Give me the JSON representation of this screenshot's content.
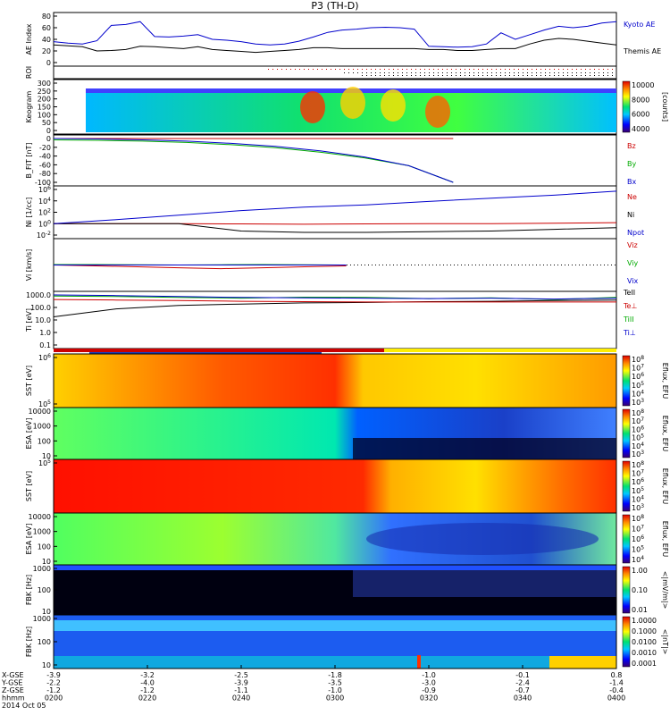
{
  "title": "P3 (TH-D)",
  "chart_data": [
    {
      "type": "line",
      "ylabel": "AE Index",
      "ylim": [
        -20,
        80
      ],
      "yticks": [
        "80",
        "60",
        "40",
        "20",
        "0"
      ],
      "series": [
        {
          "name": "Kyoto AE",
          "color": "#0000cc",
          "values": [
            25,
            22,
            20,
            27,
            60,
            62,
            68,
            36,
            35,
            37,
            40,
            30,
            28,
            25,
            20,
            18,
            20,
            26,
            35,
            45,
            50,
            52,
            55,
            56,
            55,
            52,
            15,
            14,
            13,
            14,
            20,
            44,
            30,
            40,
            50,
            58,
            55,
            58,
            65,
            68
          ]
        },
        {
          "name": "Themis AE",
          "color": "#000000",
          "values": [
            18,
            16,
            14,
            5,
            6,
            8,
            15,
            14,
            12,
            10,
            14,
            8,
            6,
            4,
            2,
            4,
            6,
            8,
            12,
            12,
            10,
            10,
            10,
            10,
            10,
            10,
            8,
            8,
            6,
            6,
            8,
            10,
            10,
            20,
            28,
            32,
            30,
            26,
            22,
            18
          ]
        }
      ]
    },
    {
      "type": "heatmap",
      "ylabel": "ROI"
    },
    {
      "type": "heatmap",
      "ylabel": "Keogram",
      "yticks": [
        "300",
        "250",
        "200",
        "150",
        "100",
        "50",
        "0"
      ],
      "colorbar": {
        "label": "[counts]",
        "ticks": [
          "10000",
          "8000",
          "6000",
          "4000"
        ]
      }
    },
    {
      "type": "line",
      "ylabel": "B_FIT [nT]",
      "ylim": [
        -100,
        0
      ],
      "yticks": [
        "0",
        "-20",
        "-40",
        "-60",
        "-80",
        "-100"
      ],
      "series": [
        {
          "name": "Bz",
          "color": "#cc0000",
          "values": [
            0,
            0,
            0,
            0,
            0,
            0,
            0,
            0,
            0,
            0
          ]
        },
        {
          "name": "By",
          "color": "#00aa00",
          "values": [
            -3,
            -4,
            -6,
            -9,
            -14,
            -21,
            -31,
            -44,
            -62,
            -100
          ]
        },
        {
          "name": "Bx",
          "color": "#0000cc",
          "values": [
            0,
            -1,
            -3,
            -6,
            -11,
            -18,
            -28,
            -42,
            -62,
            -100
          ]
        }
      ]
    },
    {
      "type": "line",
      "ylabel": "Ni [1/cc]",
      "yticks": [
        "10^6",
        "10^4",
        "10^2",
        "10^0",
        "10^-2"
      ],
      "series": [
        {
          "name": "Ne",
          "color": "#cc0000",
          "values": [
            1,
            1,
            1,
            0.9,
            0.8,
            0.9,
            1,
            1,
            1.2,
            1.5
          ]
        },
        {
          "name": "Ni",
          "color": "#000000",
          "values": [
            1,
            1,
            1,
            0.05,
            0.03,
            0.03,
            0.04,
            0.05,
            0.1,
            0.2
          ]
        },
        {
          "name": "Npot",
          "color": "#0000cc",
          "values": [
            1,
            5,
            30,
            200,
            800,
            2000,
            8000,
            30000,
            100000,
            500000
          ]
        }
      ]
    },
    {
      "type": "line",
      "ylabel": "Vi [km/s]",
      "ylim": [
        -500,
        500
      ],
      "series": [
        {
          "name": "Viz",
          "color": "#cc0000",
          "values": [
            0,
            -20,
            -40,
            -60,
            -80,
            -60,
            -40,
            -20
          ]
        },
        {
          "name": "Viy",
          "color": "#00aa00",
          "values": [
            10,
            10,
            5,
            0,
            5,
            10,
            5,
            0
          ]
        },
        {
          "name": "Vix",
          "color": "#0000cc",
          "values": [
            0,
            0,
            0,
            0,
            0,
            0,
            0,
            0
          ]
        }
      ]
    },
    {
      "type": "line",
      "ylabel": "Ti [eV]",
      "yticks": [
        "1000.0",
        "100.0",
        "10.0",
        "1.0",
        "0.1"
      ],
      "series": [
        {
          "name": "TeII",
          "color": "#000000",
          "values": [
            30,
            150,
            300,
            400,
            500,
            550,
            650,
            700,
            800,
            900
          ]
        },
        {
          "name": "Te⊥",
          "color": "#cc0000",
          "values": [
            1000,
            900,
            800,
            700,
            650,
            600,
            600,
            600,
            600,
            600
          ]
        },
        {
          "name": "TiII",
          "color": "#00aa00",
          "values": [
            2000,
            1800,
            1500,
            1300,
            1600,
            1500,
            1200,
            1400,
            1000,
            1500
          ]
        },
        {
          "name": "Ti⊥",
          "color": "#0000cc",
          "values": [
            2500,
            2200,
            1800,
            1500,
            1400,
            1300,
            1200,
            1300,
            1100,
            1300
          ]
        }
      ]
    },
    {
      "type": "heatmap",
      "ylabel": "SST [eV]",
      "yticks": [
        "10^6",
        "10^5"
      ],
      "colorbar": {
        "label": "Eflux, EFU",
        "ticks": [
          "10^8",
          "10^7",
          "10^6",
          "10^5",
          "10^4",
          "10^3"
        ]
      }
    },
    {
      "type": "heatmap",
      "ylabel": "ESA [eV]",
      "yticks": [
        "10000",
        "1000",
        "100",
        "10"
      ],
      "colorbar": {
        "label": "Eflux, EFU",
        "ticks": [
          "10^8",
          "10^7",
          "10^6",
          "10^5",
          "10^4",
          "10^3"
        ]
      }
    },
    {
      "type": "heatmap",
      "ylabel": "SST [eV]",
      "yticks": [
        "10^5"
      ],
      "colorbar": {
        "label": "Eflux, EFU",
        "ticks": [
          "10^8",
          "10^7",
          "10^6",
          "10^5",
          "10^4",
          "10^3"
        ]
      }
    },
    {
      "type": "heatmap",
      "ylabel": "ESA [eV]",
      "yticks": [
        "10000",
        "1000",
        "100",
        "10"
      ],
      "colorbar": {
        "label": "Eflux, EFU",
        "ticks": [
          "10^8",
          "10^7",
          "10^6",
          "10^5",
          "10^4"
        ]
      }
    },
    {
      "type": "heatmap",
      "ylabel": "FBK [Hz]",
      "yticks": [
        "1000",
        "100",
        "10"
      ],
      "colorbar": {
        "label": "<|mV/m|>",
        "ticks": [
          "1.00",
          "0.10",
          "0.01"
        ]
      }
    },
    {
      "type": "heatmap",
      "ylabel": "FBK [Hz]",
      "yticks": [
        "1000",
        "100",
        "10"
      ],
      "colorbar": {
        "label": "<|nT|>",
        "ticks": [
          "1.0000",
          "0.1000",
          "0.0100",
          "0.0010",
          "0.0001"
        ]
      }
    }
  ],
  "time_axis": {
    "row_labels": [
      "X-GSE",
      "Y-GSE",
      "Z-GSE",
      "hhmm",
      "2014 Oct 05"
    ],
    "columns": [
      {
        "x_gse": "-3.9",
        "y_gse": "-2.2",
        "z_gse": "-1.2",
        "hhmm": "0200"
      },
      {
        "x_gse": "-3.2",
        "y_gse": "-4.0",
        "z_gse": "-1.2",
        "hhmm": "0220"
      },
      {
        "x_gse": "-2.5",
        "y_gse": "-3.9",
        "z_gse": "-1.1",
        "hhmm": "0240"
      },
      {
        "x_gse": "-1.8",
        "y_gse": "-3.5",
        "z_gse": "-1.0",
        "hhmm": "0300"
      },
      {
        "x_gse": "-1.0",
        "y_gse": "-3.0",
        "z_gse": "-0.9",
        "hhmm": "0320"
      },
      {
        "x_gse": "-0.1",
        "y_gse": "-2.4",
        "z_gse": "-0.7",
        "hhmm": "0340"
      },
      {
        "x_gse": "0.8",
        "y_gse": "-1.4",
        "z_gse": "-0.4",
        "hhmm": "0400"
      }
    ]
  }
}
